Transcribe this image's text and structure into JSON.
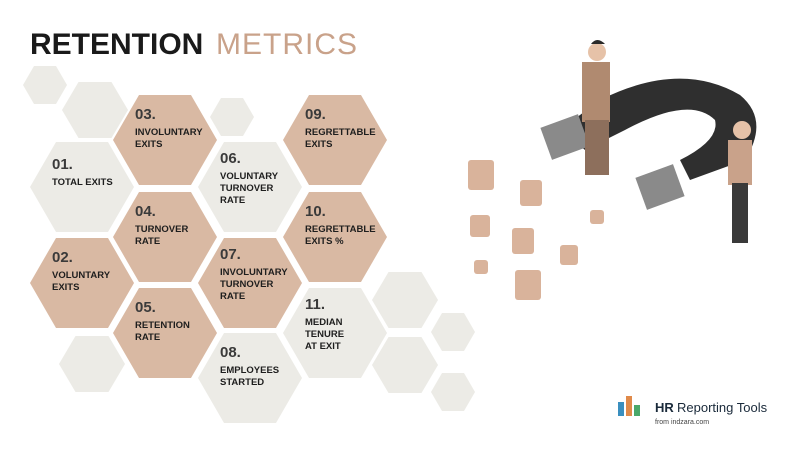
{
  "header": {
    "title_bold": "RETENTION",
    "title_light": "METRICS"
  },
  "metrics": [
    {
      "number": "01.",
      "lines": [
        "TOTAL EXITS"
      ]
    },
    {
      "number": "02.",
      "lines": [
        "VOLUNTARY",
        "EXITS"
      ]
    },
    {
      "number": "03.",
      "lines": [
        "INVOLUNTARY",
        "EXITS"
      ]
    },
    {
      "number": "04.",
      "lines": [
        "TURNOVER",
        "RATE"
      ]
    },
    {
      "number": "05.",
      "lines": [
        "RETENTION",
        "RATE"
      ]
    },
    {
      "number": "06.",
      "lines": [
        "VOLUNTARY",
        "TURNOVER",
        "RATE"
      ]
    },
    {
      "number": "07.",
      "lines": [
        "INVOLUNTARY",
        "TURNOVER",
        "RATE"
      ]
    },
    {
      "number": "08.",
      "lines": [
        "EMPLOYEES",
        "STARTED"
      ]
    },
    {
      "number": "09.",
      "lines": [
        "REGRETTABLE",
        "EXITS"
      ]
    },
    {
      "number": "10.",
      "lines": [
        "REGRETTABLE",
        "EXITS %"
      ]
    },
    {
      "number": "11.",
      "lines": [
        "MEDIAN",
        "TENURE",
        "AT EXIT"
      ]
    }
  ],
  "logo": {
    "name_bold": "HR",
    "name_rest": "Reporting Tools",
    "sub": "from indzara.com"
  }
}
